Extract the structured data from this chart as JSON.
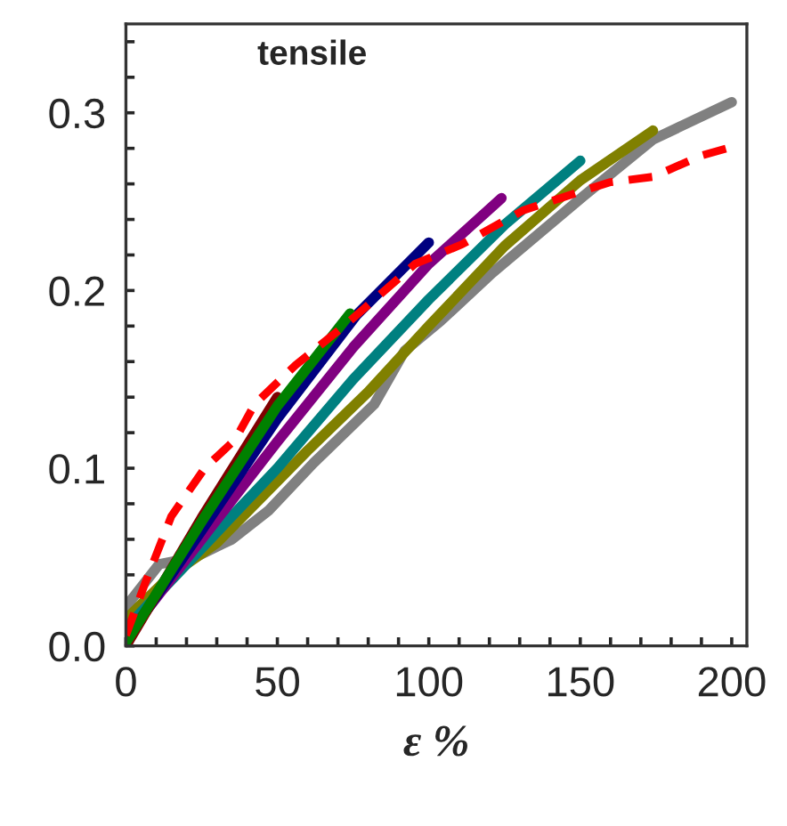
{
  "chart_data": {
    "type": "line",
    "title": "tensile",
    "xlabel": "ε %",
    "xlim": [
      0,
      205
    ],
    "ylim": [
      0,
      0.35
    ],
    "xticks": [
      0,
      {
        "value": 10,
        "label": null
      },
      {
        "value": 20,
        "label": null
      },
      {
        "value": 30,
        "label": null
      },
      {
        "value": 40,
        "label": null
      },
      50,
      {
        "value": 60,
        "label": null
      },
      {
        "value": 70,
        "label": null
      },
      {
        "value": 80,
        "label": null
      },
      {
        "value": 90,
        "label": null
      },
      100,
      {
        "value": 110,
        "label": null
      },
      {
        "value": 120,
        "label": null
      },
      {
        "value": 130,
        "label": null
      },
      {
        "value": 140,
        "label": null
      },
      150,
      {
        "value": 160,
        "label": null
      },
      {
        "value": 170,
        "label": null
      },
      {
        "value": 180,
        "label": null
      },
      {
        "value": 190,
        "label": null
      },
      200
    ],
    "yticks": [
      {
        "value": 0,
        "label": "0.0"
      },
      {
        "value": 0.02,
        "label": null
      },
      {
        "value": 0.04,
        "label": null
      },
      {
        "value": 0.06,
        "label": null
      },
      {
        "value": 0.08,
        "label": null
      },
      {
        "value": 0.1,
        "label": "0.1"
      },
      {
        "value": 0.12,
        "label": null
      },
      {
        "value": 0.14,
        "label": null
      },
      {
        "value": 0.16,
        "label": null
      },
      {
        "value": 0.18,
        "label": null
      },
      {
        "value": 0.2,
        "label": "0.2"
      },
      {
        "value": 0.22,
        "label": null
      },
      {
        "value": 0.24,
        "label": null
      },
      {
        "value": 0.26,
        "label": null
      },
      {
        "value": 0.28,
        "label": null
      },
      {
        "value": 0.3,
        "label": "0.3"
      },
      {
        "value": 0.32,
        "label": null
      },
      {
        "value": 0.34,
        "label": null
      }
    ],
    "grid": false,
    "marker": "none",
    "series": [
      {
        "color": "#808080",
        "line_style": "solid",
        "x": [
          0,
          11,
          23,
          35,
          47,
          62,
          82,
          92,
          104,
          121,
          151,
          174,
          200
        ],
        "values": [
          0.022,
          0.046,
          0.05,
          0.06,
          0.076,
          0.103,
          0.136,
          0.166,
          0.183,
          0.21,
          0.253,
          0.285,
          0.306
        ]
      },
      {
        "color": "#808000",
        "line_style": "solid",
        "x": [
          0,
          15,
          30,
          60,
          80,
          100,
          125,
          150,
          174
        ],
        "values": [
          0.015,
          0.04,
          0.058,
          0.11,
          0.143,
          0.18,
          0.225,
          0.262,
          0.29
        ]
      },
      {
        "color": "#008080",
        "line_style": "solid",
        "x": [
          0,
          25,
          50,
          75,
          100,
          125,
          150
        ],
        "values": [
          0.01,
          0.055,
          0.1,
          0.15,
          0.195,
          0.237,
          0.273
        ]
      },
      {
        "color": "#800080",
        "line_style": "solid",
        "x": [
          0,
          25,
          50,
          75,
          100,
          124
        ],
        "values": [
          0.005,
          0.06,
          0.115,
          0.168,
          0.215,
          0.252
        ]
      },
      {
        "color": "#000080",
        "line_style": "solid",
        "x": [
          0,
          25,
          50,
          76,
          100
        ],
        "values": [
          0.003,
          0.065,
          0.128,
          0.186,
          0.227
        ]
      },
      {
        "color": "#800000",
        "line_style": "solid",
        "x": [
          0,
          25,
          50
        ],
        "values": [
          0.0,
          0.072,
          0.14
        ]
      },
      {
        "color": "#008000",
        "line_style": "solid",
        "x": [
          0,
          25,
          50,
          74
        ],
        "values": [
          0.002,
          0.07,
          0.135,
          0.187
        ]
      },
      {
        "color": "#ff0000",
        "line_style": "dashed",
        "x": [
          0,
          6.5,
          15,
          26,
          36,
          42.5,
          56,
          72,
          95.5,
          111,
          131,
          150.6,
          160,
          174,
          190,
          200.5
        ],
        "values": [
          0.006,
          0.036,
          0.073,
          0.1,
          0.116,
          0.136,
          0.158,
          0.18,
          0.215,
          0.226,
          0.245,
          0.256,
          0.261,
          0.264,
          0.276,
          0.281
        ]
      }
    ]
  }
}
